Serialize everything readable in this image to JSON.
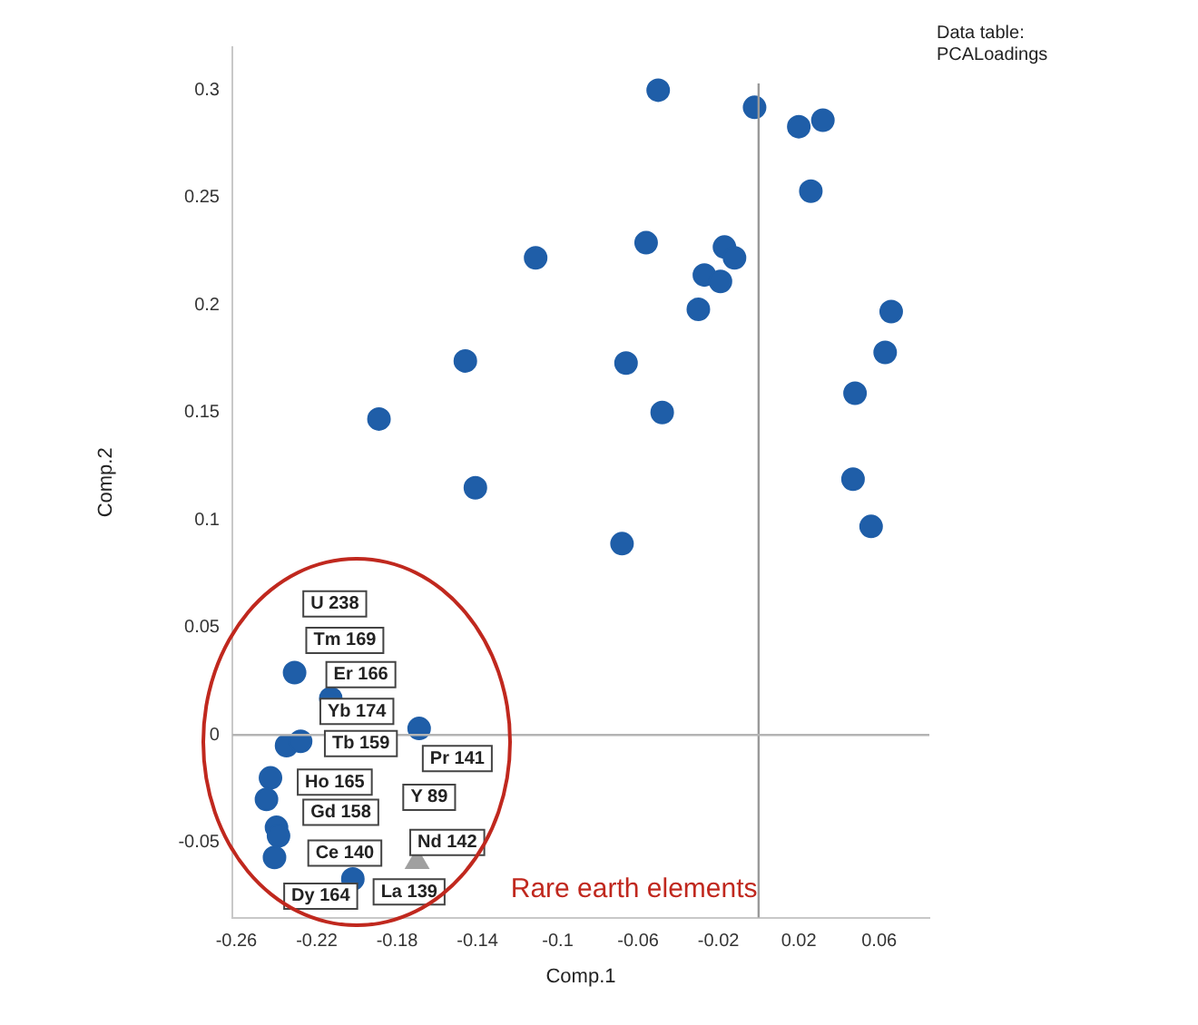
{
  "chart_data": {
    "type": "scatter",
    "xlabel": "Comp.1",
    "ylabel": "Comp.2",
    "xlim": [
      -0.262,
      0.085
    ],
    "ylim": [
      -0.085,
      0.32
    ],
    "xticks": [
      -0.26,
      -0.22,
      -0.18,
      -0.14,
      -0.1,
      -0.06,
      -0.02,
      0.02,
      0.06
    ],
    "yticks": [
      -0.05,
      0,
      0.05,
      0.1,
      0.15,
      0.2,
      0.25,
      0.3
    ],
    "grid": false,
    "legend": false,
    "marker": "circle",
    "ref_lines": [
      {
        "axis": "x",
        "value": 0,
        "color": "#999999"
      },
      {
        "axis": "y",
        "value": 0,
        "color": "#b4b4b4"
      }
    ],
    "series": [
      {
        "color": "#1f5ea8",
        "x": [
          -0.05,
          -0.002,
          0.02,
          0.032,
          0.026,
          -0.111,
          -0.056,
          -0.017,
          -0.012,
          -0.027,
          -0.019,
          -0.03,
          0.066,
          0.063,
          -0.146,
          -0.066,
          0.048,
          -0.189,
          -0.048,
          -0.141,
          0.047,
          0.056,
          -0.068,
          -0.231,
          -0.213,
          -0.169,
          -0.235,
          -0.228,
          -0.243,
          -0.245,
          -0.24,
          -0.239,
          -0.241,
          -0.202
        ],
        "values": [
          0.3,
          0.292,
          0.283,
          0.286,
          0.253,
          0.222,
          0.229,
          0.227,
          0.222,
          0.214,
          0.211,
          0.198,
          0.197,
          0.178,
          0.174,
          0.173,
          0.159,
          0.147,
          0.15,
          0.115,
          0.119,
          0.097,
          0.089,
          0.029,
          0.017,
          0.003,
          -0.005,
          -0.003,
          -0.02,
          -0.03,
          -0.043,
          -0.047,
          -0.057,
          -0.067
        ]
      },
      {
        "color": "#a0a0a0",
        "marker": "triangle",
        "x": [
          -0.17
        ],
        "values": [
          -0.059
        ]
      }
    ],
    "annotations": [
      "Data table:",
      "PCALoadings",
      "Rare earth elements",
      "U 238",
      "Tm 169",
      "Er 166",
      "Yb 174",
      "Tb 159",
      "Pr 141",
      "Ho 165",
      "Y 89",
      "Gd 158",
      "Nd 142",
      "Ce 140",
      "Dy 164",
      "La 139"
    ]
  }
}
